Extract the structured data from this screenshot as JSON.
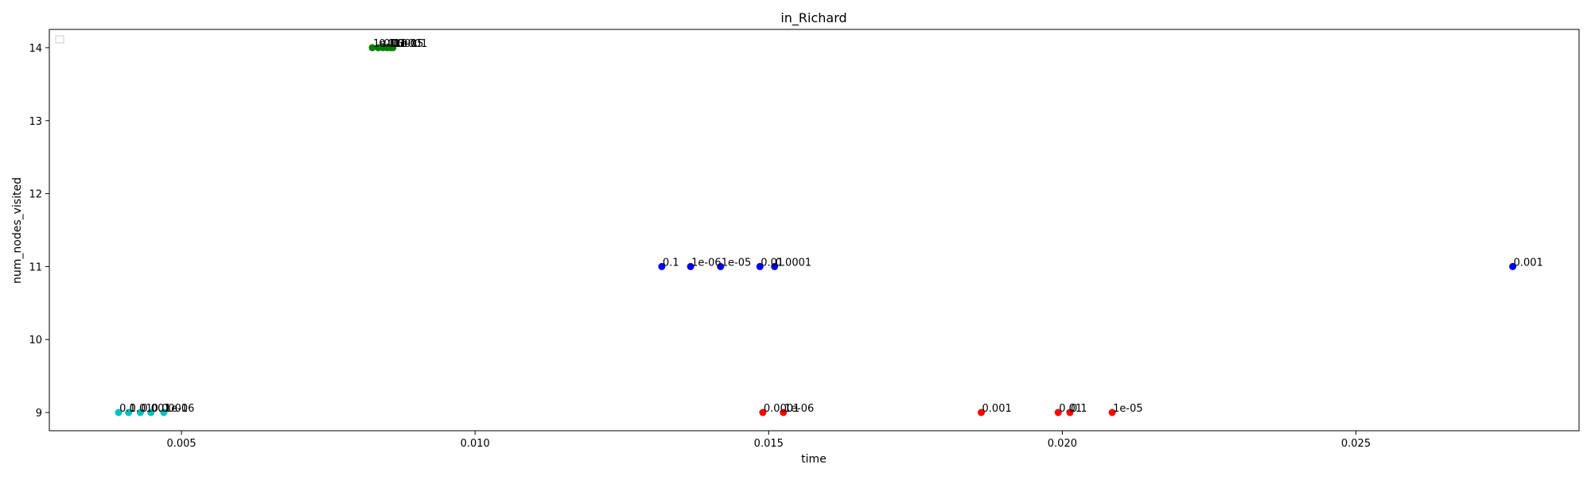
{
  "chart_data": {
    "type": "scatter",
    "title": "in_Richard",
    "xlabel": "time",
    "ylabel": "num_nodes_visited",
    "xlim": [
      0.00275,
      0.0288
    ],
    "ylim": [
      8.75,
      14.25
    ],
    "xticks": [
      0.005,
      0.01,
      0.015,
      0.02,
      0.025
    ],
    "xtick_labels": [
      "0.005",
      "0.010",
      "0.015",
      "0.020",
      "0.025"
    ],
    "yticks": [
      9,
      10,
      11,
      12,
      13,
      14
    ],
    "ytick_labels": [
      "9",
      "10",
      "11",
      "12",
      "13",
      "14"
    ],
    "grid": false,
    "legend": "upper-left (empty)",
    "series": [
      {
        "color": "#00bfbf",
        "points": [
          {
            "x": 0.00393,
            "y": 9,
            "label": "0.1"
          },
          {
            "x": 0.0041,
            "y": 9,
            "label": "0.01"
          },
          {
            "x": 0.0043,
            "y": 9,
            "label": "0.001"
          },
          {
            "x": 0.00448,
            "y": 9,
            "label": "0.0001"
          },
          {
            "x": 0.0047,
            "y": 9,
            "label": "1e-06"
          }
        ]
      },
      {
        "color": "#008000",
        "points": [
          {
            "x": 0.00825,
            "y": 14,
            "label": "1e-06"
          },
          {
            "x": 0.00835,
            "y": 14,
            "label": "0.1"
          },
          {
            "x": 0.00843,
            "y": 14,
            "label": "0.01"
          },
          {
            "x": 0.0085,
            "y": 14,
            "label": "0.001"
          },
          {
            "x": 0.00856,
            "y": 14,
            "label": "0.0001"
          },
          {
            "x": 0.0086,
            "y": 14,
            "label": "1e-05"
          }
        ]
      },
      {
        "color": "#0000ff",
        "points": [
          {
            "x": 0.01318,
            "y": 11,
            "label": "0.1"
          },
          {
            "x": 0.01367,
            "y": 11,
            "label": "1e-06"
          },
          {
            "x": 0.01418,
            "y": 11,
            "label": "1e-05"
          },
          {
            "x": 0.01485,
            "y": 11,
            "label": "0.01"
          },
          {
            "x": 0.0151,
            "y": 11,
            "label": "0.0001"
          },
          {
            "x": 0.02767,
            "y": 11,
            "label": "0.001"
          }
        ]
      },
      {
        "color": "#ff0000",
        "points": [
          {
            "x": 0.0149,
            "y": 9,
            "label": "0.0001"
          },
          {
            "x": 0.01525,
            "y": 9,
            "label": "1e-06"
          },
          {
            "x": 0.01862,
            "y": 9,
            "label": "0.001"
          },
          {
            "x": 0.01993,
            "y": 9,
            "label": "0.01"
          },
          {
            "x": 0.02013,
            "y": 9,
            "label": "0.1"
          },
          {
            "x": 0.02085,
            "y": 9,
            "label": "1e-05"
          }
        ]
      }
    ]
  }
}
